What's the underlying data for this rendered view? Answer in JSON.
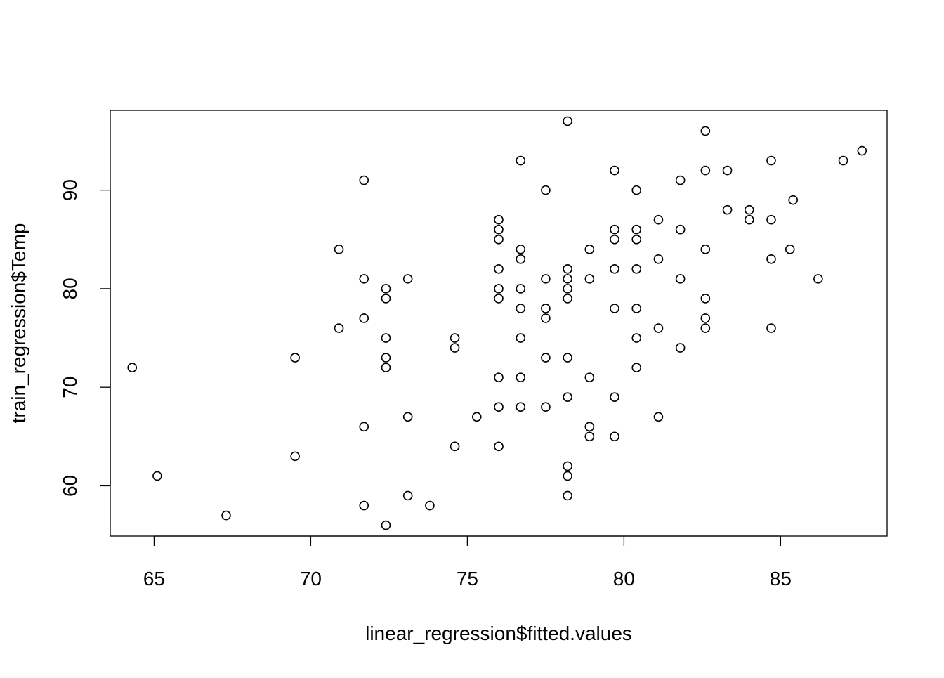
{
  "chart_data": {
    "type": "scatter",
    "title": "",
    "xlabel": "linear_regression$fitted.values",
    "ylabel": "train_regression$Temp",
    "xlim": [
      63.6,
      88.4
    ],
    "ylim": [
      54.9,
      98.1
    ],
    "x_ticks": [
      65,
      70,
      75,
      80,
      85
    ],
    "y_ticks": [
      60,
      70,
      80,
      90
    ],
    "grid": false,
    "marker": "open-circle",
    "colors": {
      "marker": "#000000",
      "axis": "#000000",
      "background": "#ffffff"
    },
    "points": [
      [
        64.3,
        72
      ],
      [
        65.1,
        61
      ],
      [
        67.3,
        57
      ],
      [
        69.5,
        73
      ],
      [
        69.5,
        63
      ],
      [
        70.9,
        84
      ],
      [
        70.9,
        76
      ],
      [
        71.7,
        91
      ],
      [
        71.7,
        81
      ],
      [
        71.7,
        77
      ],
      [
        71.7,
        66
      ],
      [
        71.7,
        58
      ],
      [
        72.4,
        80
      ],
      [
        72.4,
        79
      ],
      [
        72.4,
        75
      ],
      [
        72.4,
        73
      ],
      [
        72.4,
        72
      ],
      [
        72.4,
        56
      ],
      [
        73.1,
        81
      ],
      [
        73.1,
        67
      ],
      [
        73.1,
        59
      ],
      [
        73.8,
        58
      ],
      [
        74.6,
        75
      ],
      [
        74.6,
        74
      ],
      [
        74.6,
        64
      ],
      [
        75.3,
        67
      ],
      [
        76.0,
        87
      ],
      [
        76.0,
        86
      ],
      [
        76.0,
        85
      ],
      [
        76.0,
        82
      ],
      [
        76.0,
        80
      ],
      [
        76.0,
        79
      ],
      [
        76.0,
        71
      ],
      [
        76.0,
        68
      ],
      [
        76.0,
        64
      ],
      [
        76.7,
        93
      ],
      [
        76.7,
        84
      ],
      [
        76.7,
        83
      ],
      [
        76.7,
        80
      ],
      [
        76.7,
        78
      ],
      [
        76.7,
        75
      ],
      [
        76.7,
        71
      ],
      [
        76.7,
        68
      ],
      [
        77.5,
        90
      ],
      [
        77.5,
        81
      ],
      [
        77.5,
        78
      ],
      [
        77.5,
        77
      ],
      [
        77.5,
        73
      ],
      [
        77.5,
        68
      ],
      [
        78.2,
        97
      ],
      [
        78.2,
        82
      ],
      [
        78.2,
        81
      ],
      [
        78.2,
        80
      ],
      [
        78.2,
        79
      ],
      [
        78.2,
        73
      ],
      [
        78.2,
        69
      ],
      [
        78.2,
        62
      ],
      [
        78.2,
        61
      ],
      [
        78.2,
        59
      ],
      [
        78.9,
        84
      ],
      [
        78.9,
        81
      ],
      [
        78.9,
        71
      ],
      [
        78.9,
        66
      ],
      [
        78.9,
        65
      ],
      [
        79.7,
        92
      ],
      [
        79.7,
        86
      ],
      [
        79.7,
        85
      ],
      [
        79.7,
        82
      ],
      [
        79.7,
        78
      ],
      [
        79.7,
        69
      ],
      [
        79.7,
        65
      ],
      [
        80.4,
        90
      ],
      [
        80.4,
        86
      ],
      [
        80.4,
        85
      ],
      [
        80.4,
        82
      ],
      [
        80.4,
        78
      ],
      [
        80.4,
        75
      ],
      [
        80.4,
        72
      ],
      [
        81.1,
        87
      ],
      [
        81.1,
        83
      ],
      [
        81.1,
        76
      ],
      [
        81.1,
        67
      ],
      [
        81.8,
        91
      ],
      [
        81.8,
        86
      ],
      [
        81.8,
        81
      ],
      [
        81.8,
        74
      ],
      [
        82.6,
        96
      ],
      [
        82.6,
        92
      ],
      [
        82.6,
        84
      ],
      [
        82.6,
        79
      ],
      [
        82.6,
        77
      ],
      [
        82.6,
        76
      ],
      [
        83.3,
        92
      ],
      [
        83.3,
        88
      ],
      [
        84.0,
        88
      ],
      [
        84.0,
        87
      ],
      [
        84.7,
        93
      ],
      [
        84.7,
        87
      ],
      [
        84.7,
        83
      ],
      [
        84.7,
        76
      ],
      [
        85.3,
        84
      ],
      [
        85.4,
        89
      ],
      [
        86.2,
        81
      ],
      [
        87.0,
        93
      ],
      [
        87.6,
        94
      ]
    ]
  }
}
